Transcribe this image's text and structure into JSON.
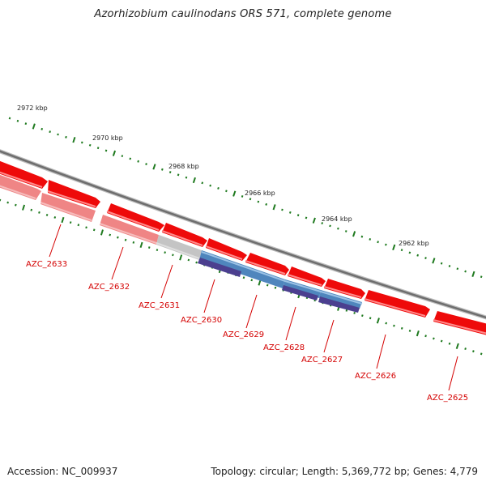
{
  "title": "Azorhizobium caulinodans ORS 571, complete genome",
  "footer": {
    "accession": "Accession: NC_009937",
    "summary": "Topology: circular; Length: 5,369,772 bp; Genes: 4,779"
  },
  "colors": {
    "backbone": "#7d7d7d",
    "tick": "#1f7a1f",
    "label": "#d40000",
    "gene_red": "#ee0a0a",
    "gene_pink": "#ef8585",
    "gene_grey": "#c4c4c4",
    "gene_blue": "#4f86bd",
    "gene_navy": "#4b3f8f"
  },
  "scale_labels": [
    "2972 kbp",
    "2970 kbp",
    "2968 kbp",
    "2966 kbp",
    "2964 kbp",
    "2962 kbp"
  ],
  "gene_labels": [
    "AZC_2633",
    "AZC_2632",
    "AZC_2631",
    "AZC_2630",
    "AZC_2629",
    "AZC_2628",
    "AZC_2627",
    "AZC_2626",
    "AZC_2625"
  ]
}
